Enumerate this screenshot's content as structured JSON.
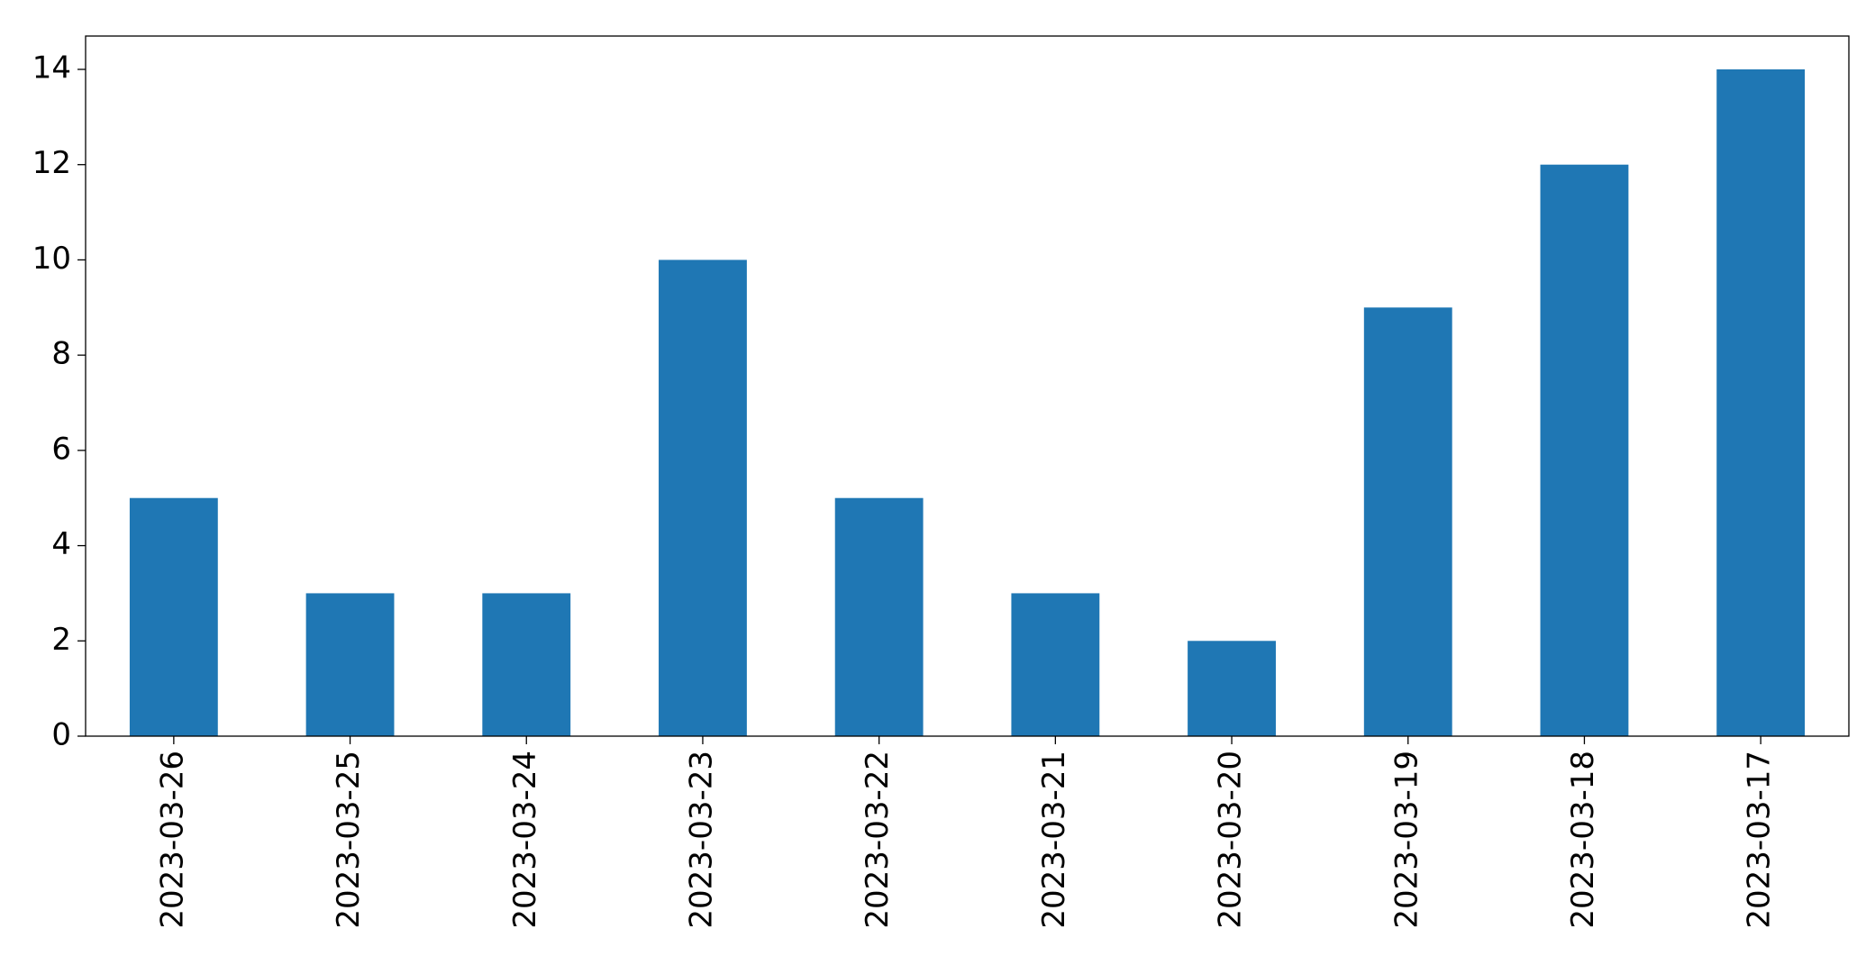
{
  "chart_data": {
    "type": "bar",
    "categories": [
      "2023-03-26",
      "2023-03-25",
      "2023-03-24",
      "2023-03-23",
      "2023-03-22",
      "2023-03-21",
      "2023-03-20",
      "2023-03-19",
      "2023-03-18",
      "2023-03-17"
    ],
    "values": [
      5,
      3,
      3,
      10,
      5,
      3,
      2,
      9,
      12,
      14
    ],
    "color": "#1f77b4",
    "ylim": [
      0,
      14.7
    ],
    "yticks": [
      0,
      2,
      4,
      6,
      8,
      10,
      12,
      14
    ],
    "grid": false
  }
}
